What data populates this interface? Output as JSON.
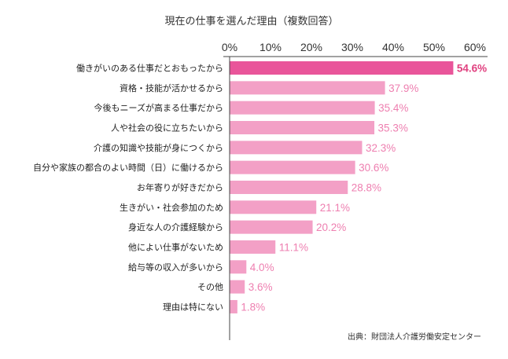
{
  "chart_data": {
    "type": "bar",
    "orientation": "horizontal",
    "title": "現在の仕事を選んだ理由（複数回答）",
    "categories": [
      "働きがいのある仕事だとおもったから",
      "資格・技能が活かせるから",
      "今後もニーズが高まる仕事だから",
      "人や社会の役に立ちたいから",
      "介護の知識や技能が身につくから",
      "自分や家族の都合のよい時間（日）に働けるから",
      "お年寄りが好きだから",
      "生きがい・社会参加のため",
      "身近な人の介護経験から",
      "他によい仕事がないため",
      "給与等の収入が多いから",
      "その他",
      "理由は特にない"
    ],
    "values": [
      54.6,
      37.9,
      35.4,
      35.3,
      32.3,
      30.6,
      28.8,
      21.1,
      20.2,
      11.1,
      4.0,
      3.6,
      1.8
    ],
    "value_labels": [
      "54.6%",
      "37.9%",
      "35.4%",
      "35.3%",
      "32.3%",
      "30.6%",
      "28.8%",
      "21.1%",
      "20.2%",
      "11.1%",
      "4.0%",
      "3.6%",
      "1.8%"
    ],
    "xlim": [
      0,
      60
    ],
    "ticks": [
      0,
      10,
      20,
      30,
      40,
      50,
      60
    ],
    "tick_labels": [
      "0%",
      "10%",
      "20%",
      "30%",
      "40%",
      "50%",
      "60%"
    ],
    "axis_position": "top",
    "grid": false,
    "legend": "none",
    "highlight_index": 0,
    "colors": {
      "highlight_bar": "#e9559a",
      "bar": "#f3a0c6",
      "highlight_label": "#e0407f",
      "label": "#ee7fb0",
      "axis": "#444444"
    },
    "source": "出典：財団法人介護労働安定センター"
  }
}
